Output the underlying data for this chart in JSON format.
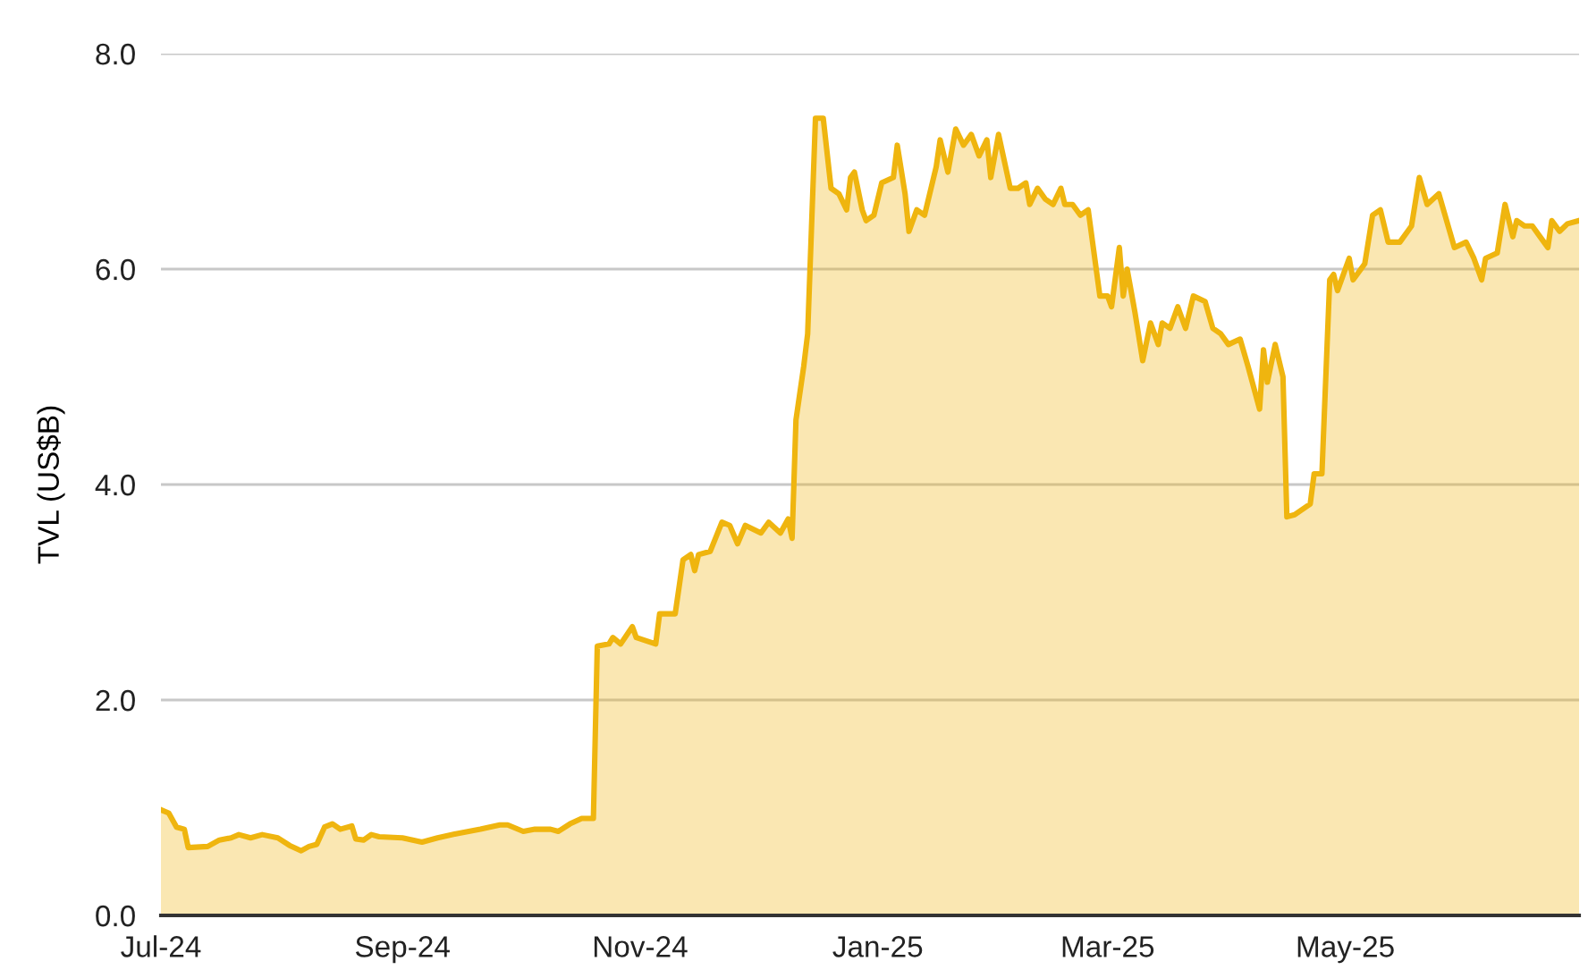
{
  "chart_data": {
    "type": "area",
    "ylabel": "TVL (US$B)",
    "x": [
      "2024-07-01",
      "2024-07-03",
      "2024-07-05",
      "2024-07-07",
      "2024-07-08",
      "2024-07-13",
      "2024-07-16",
      "2024-07-19",
      "2024-07-21",
      "2024-07-24",
      "2024-07-27",
      "2024-07-31",
      "2024-08-03",
      "2024-08-06",
      "2024-08-08",
      "2024-08-10",
      "2024-08-12",
      "2024-08-14",
      "2024-08-16",
      "2024-08-19",
      "2024-08-20",
      "2024-08-22",
      "2024-08-24",
      "2024-08-26",
      "2024-09-01",
      "2024-09-06",
      "2024-09-10",
      "2024-09-15",
      "2024-09-21",
      "2024-09-26",
      "2024-09-28",
      "2024-10-02",
      "2024-10-05",
      "2024-10-09",
      "2024-10-11",
      "2024-10-14",
      "2024-10-17",
      "2024-10-20",
      "2024-10-21",
      "2024-10-24",
      "2024-10-25",
      "2024-10-27",
      "2024-10-30",
      "2024-10-31",
      "2024-11-05",
      "2024-11-06",
      "2024-11-10",
      "2024-11-12",
      "2024-11-14",
      "2024-11-15",
      "2024-11-16",
      "2024-11-19",
      "2024-11-22",
      "2024-11-24",
      "2024-11-26",
      "2024-11-28",
      "2024-12-02",
      "2024-12-04",
      "2024-12-07",
      "2024-12-09",
      "2024-12-10",
      "2024-12-11",
      "2024-12-13",
      "2024-12-14",
      "2024-12-16",
      "2024-12-18",
      "2024-12-20",
      "2024-12-22",
      "2024-12-24",
      "2024-12-25",
      "2024-12-26",
      "2024-12-28",
      "2024-12-29",
      "2024-12-31",
      "2025-01-02",
      "2025-01-05",
      "2025-01-06",
      "2025-01-08",
      "2025-01-09",
      "2025-01-11",
      "2025-01-13",
      "2025-01-16",
      "2025-01-17",
      "2025-01-19",
      "2025-01-21",
      "2025-01-23",
      "2025-01-25",
      "2025-01-27",
      "2025-01-29",
      "2025-01-30",
      "2025-02-01",
      "2025-02-04",
      "2025-02-06",
      "2025-02-08",
      "2025-02-09",
      "2025-02-11",
      "2025-02-13",
      "2025-02-15",
      "2025-02-17",
      "2025-02-18",
      "2025-02-20",
      "2025-02-22",
      "2025-02-24",
      "2025-02-27",
      "2025-03-01",
      "2025-03-02",
      "2025-03-04",
      "2025-03-05",
      "2025-03-06",
      "2025-03-08",
      "2025-03-10",
      "2025-03-12",
      "2025-03-14",
      "2025-03-15",
      "2025-03-17",
      "2025-03-19",
      "2025-03-21",
      "2025-03-23",
      "2025-03-26",
      "2025-03-28",
      "2025-03-30",
      "2025-04-01",
      "2025-04-04",
      "2025-04-06",
      "2025-04-09",
      "2025-04-10",
      "2025-04-11",
      "2025-04-13",
      "2025-04-15",
      "2025-04-16",
      "2025-04-18",
      "2025-04-22",
      "2025-04-23",
      "2025-04-25",
      "2025-04-27",
      "2025-04-28",
      "2025-04-29",
      "2025-05-02",
      "2025-05-03",
      "2025-05-06",
      "2025-05-08",
      "2025-05-10",
      "2025-05-12",
      "2025-05-15",
      "2025-05-18",
      "2025-05-20",
      "2025-05-22",
      "2025-05-25",
      "2025-05-29",
      "2025-06-01",
      "2025-06-03",
      "2025-06-05",
      "2025-06-06",
      "2025-06-09",
      "2025-06-11",
      "2025-06-13",
      "2025-06-14",
      "2025-06-16",
      "2025-06-18",
      "2025-06-20",
      "2025-06-22",
      "2025-06-23",
      "2025-06-25",
      "2025-06-27",
      "2025-06-30"
    ],
    "series": [
      {
        "color": "#efb50f",
        "values": [
          0.98,
          0.95,
          0.82,
          0.8,
          0.63,
          0.64,
          0.7,
          0.72,
          0.75,
          0.72,
          0.75,
          0.72,
          0.65,
          0.6,
          0.64,
          0.66,
          0.82,
          0.85,
          0.8,
          0.83,
          0.71,
          0.7,
          0.75,
          0.73,
          0.72,
          0.68,
          0.72,
          0.76,
          0.8,
          0.84,
          0.84,
          0.78,
          0.8,
          0.8,
          0.78,
          0.85,
          0.9,
          0.9,
          2.5,
          2.52,
          2.58,
          2.52,
          2.68,
          2.58,
          2.52,
          2.8,
          2.8,
          3.3,
          3.35,
          3.2,
          3.35,
          3.38,
          3.65,
          3.62,
          3.45,
          3.62,
          3.55,
          3.65,
          3.55,
          3.68,
          3.5,
          4.6,
          5.1,
          5.4,
          7.4,
          7.4,
          6.75,
          6.7,
          6.55,
          6.85,
          6.9,
          6.55,
          6.45,
          6.5,
          6.8,
          6.85,
          7.15,
          6.7,
          6.35,
          6.55,
          6.5,
          6.95,
          7.2,
          6.9,
          7.3,
          7.15,
          7.25,
          7.05,
          7.2,
          6.85,
          7.25,
          6.75,
          6.75,
          6.8,
          6.6,
          6.75,
          6.65,
          6.6,
          6.75,
          6.6,
          6.6,
          6.5,
          6.55,
          5.75,
          5.75,
          5.65,
          6.2,
          5.75,
          6.0,
          5.6,
          5.15,
          5.5,
          5.3,
          5.5,
          5.45,
          5.65,
          5.45,
          5.75,
          5.7,
          5.45,
          5.4,
          5.3,
          5.35,
          5.1,
          4.7,
          5.25,
          4.95,
          5.3,
          5.0,
          3.7,
          3.72,
          3.82,
          4.1,
          4.1,
          5.9,
          5.95,
          5.8,
          6.1,
          5.9,
          6.05,
          6.5,
          6.55,
          6.25,
          6.25,
          6.4,
          6.85,
          6.6,
          6.7,
          6.2,
          6.25,
          6.1,
          5.9,
          6.1,
          6.15,
          6.6,
          6.3,
          6.45,
          6.4,
          6.4,
          6.3,
          6.2,
          6.45,
          6.35,
          6.42,
          6.45
        ]
      }
    ],
    "xlim": [
      "2024-07-01",
      "2025-06-30"
    ],
    "xticks": [
      {
        "value": "2024-07-01",
        "label": "Jul-24"
      },
      {
        "value": "2024-09-01",
        "label": "Sep-24"
      },
      {
        "value": "2024-11-01",
        "label": "Nov-24"
      },
      {
        "value": "2025-01-01",
        "label": "Jan-25"
      },
      {
        "value": "2025-03-01",
        "label": "Mar-25"
      },
      {
        "value": "2025-05-01",
        "label": "May-25"
      }
    ],
    "ylim": [
      0,
      8
    ],
    "yticks": [
      {
        "value": 0,
        "label": "0.0"
      },
      {
        "value": 2,
        "label": "2.0"
      },
      {
        "value": 4,
        "label": "4.0"
      },
      {
        "value": 6,
        "label": "6.0"
      },
      {
        "value": 8,
        "label": "8.0"
      }
    ],
    "grid": "y",
    "legend": false,
    "marker": "none",
    "line_style": "solid"
  }
}
